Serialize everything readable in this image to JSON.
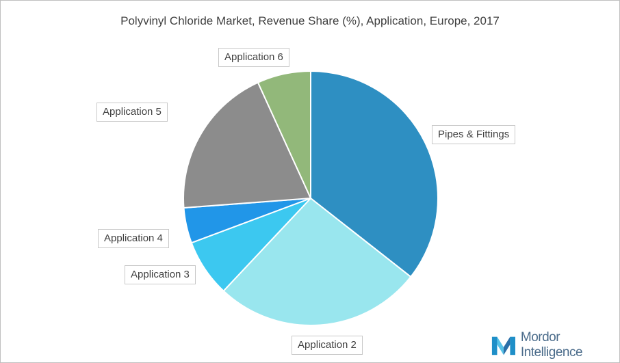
{
  "chart_data": {
    "type": "pie",
    "title": "Polyvinyl Chloride Market, Revenue Share (%), Application, Europe, 2017",
    "slices": [
      {
        "label": "Pipes & Fittings",
        "value": 35.6,
        "color": "#2e8fc2"
      },
      {
        "label": "Application 2",
        "value": 26.4,
        "color": "#99e6ee"
      },
      {
        "label": "Application 3",
        "value": 7.3,
        "color": "#3cc8f0"
      },
      {
        "label": "Application 4",
        "value": 4.5,
        "color": "#2196e8"
      },
      {
        "label": "Application 5",
        "value": 19.4,
        "color": "#8c8c8c"
      },
      {
        "label": "Application 6",
        "value": 6.8,
        "color": "#92b87a"
      }
    ]
  },
  "logo": {
    "text": "Mordor Intelligence"
  }
}
